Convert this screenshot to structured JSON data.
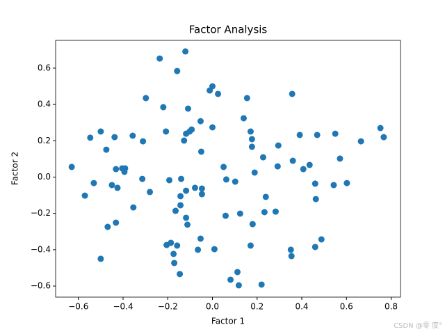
{
  "chart_data": {
    "type": "scatter",
    "title": "Factor Analysis",
    "x_label": "Factor 1",
    "y_label": "Factor 2",
    "color": "#1f77b4",
    "grid": false,
    "xlim": [
      -0.702,
      0.842
    ],
    "ylim": [
      -0.661,
      0.753
    ],
    "xticks": [
      {
        "value": -0.6,
        "label": "−0.6"
      },
      {
        "value": -0.4,
        "label": "−0.4"
      },
      {
        "value": -0.2,
        "label": "−0.2"
      },
      {
        "value": 0,
        "label": "0.0"
      },
      {
        "value": 0.2,
        "label": "0.2"
      },
      {
        "value": 0.4,
        "label": "0.4"
      },
      {
        "value": 0.6,
        "label": "0.6"
      },
      {
        "value": 0.8,
        "label": "0.8"
      }
    ],
    "yticks": [
      {
        "value": -0.6,
        "label": "−0.6"
      },
      {
        "value": -0.4,
        "label": "−0.4"
      },
      {
        "value": -0.2,
        "label": "−0.2"
      },
      {
        "value": 0,
        "label": "0.0"
      },
      {
        "value": 0.2,
        "label": "0.2"
      },
      {
        "value": 0.4,
        "label": "0.4"
      },
      {
        "value": 0.6,
        "label": "0.6"
      }
    ],
    "x": [
      -0.63,
      -0.571,
      -0.547,
      -0.531,
      -0.5,
      -0.5,
      -0.475,
      -0.469,
      -0.45,
      -0.438,
      -0.432,
      -0.432,
      -0.425,
      -0.404,
      -0.394,
      -0.391,
      -0.357,
      -0.354,
      -0.314,
      -0.311,
      -0.298,
      -0.28,
      -0.236,
      -0.22,
      -0.208,
      -0.205,
      -0.193,
      -0.186,
      -0.174,
      -0.171,
      -0.165,
      -0.158,
      -0.158,
      -0.146,
      -0.143,
      -0.143,
      -0.14,
      -0.127,
      -0.121,
      -0.118,
      -0.118,
      -0.118,
      -0.112,
      -0.109,
      -0.102,
      -0.093,
      -0.078,
      -0.065,
      -0.053,
      -0.05,
      -0.053,
      -0.047,
      -0.047,
      -0.012,
      0.0,
      0.0,
      0.009,
      0.025,
      0.05,
      0.059,
      0.062,
      0.081,
      0.102,
      0.112,
      0.118,
      0.124,
      0.14,
      0.155,
      0.171,
      0.171,
      0.177,
      0.177,
      0.18,
      0.189,
      0.22,
      0.227,
      0.233,
      0.239,
      0.283,
      0.292,
      0.295,
      0.351,
      0.354,
      0.357,
      0.36,
      0.391,
      0.407,
      0.435,
      0.46,
      0.46,
      0.463,
      0.469,
      0.488,
      0.543,
      0.55,
      0.571,
      0.602,
      0.665,
      0.752,
      0.767
    ],
    "y": [
      0.056,
      -0.102,
      0.217,
      -0.033,
      0.251,
      -0.45,
      0.151,
      -0.274,
      -0.044,
      0.22,
      0.044,
      -0.251,
      -0.059,
      0.048,
      0.029,
      0.048,
      0.228,
      -0.167,
      -0.01,
      0.197,
      0.435,
      -0.082,
      0.653,
      0.385,
      0.251,
      -0.374,
      -0.017,
      -0.362,
      -0.423,
      -0.473,
      -0.186,
      0.584,
      -0.377,
      -0.534,
      -0.105,
      -0.155,
      -0.01,
      0.201,
      0.692,
      -0.224,
      0.239,
      -0.075,
      -0.262,
      0.377,
      0.251,
      0.262,
      -0.059,
      -0.4,
      0.308,
      0.14,
      -0.339,
      -0.063,
      -0.094,
      0.477,
      0.5,
      0.274,
      -0.397,
      0.458,
      0.056,
      -0.213,
      -0.013,
      -0.565,
      -0.025,
      -0.523,
      -0.596,
      -0.201,
      0.324,
      0.435,
      0.251,
      -0.377,
      0.209,
      0.167,
      -0.259,
      0.025,
      -0.592,
      0.109,
      -0.193,
      -0.109,
      -0.19,
      0.059,
      0.174,
      -0.4,
      -0.435,
      0.458,
      0.09,
      0.232,
      0.044,
      0.067,
      -0.036,
      -0.385,
      -0.121,
      0.232,
      -0.343,
      -0.044,
      0.239,
      0.102,
      -0.033,
      0.197,
      0.27,
      0.22
    ]
  },
  "watermark": "CSDN @零 度°"
}
